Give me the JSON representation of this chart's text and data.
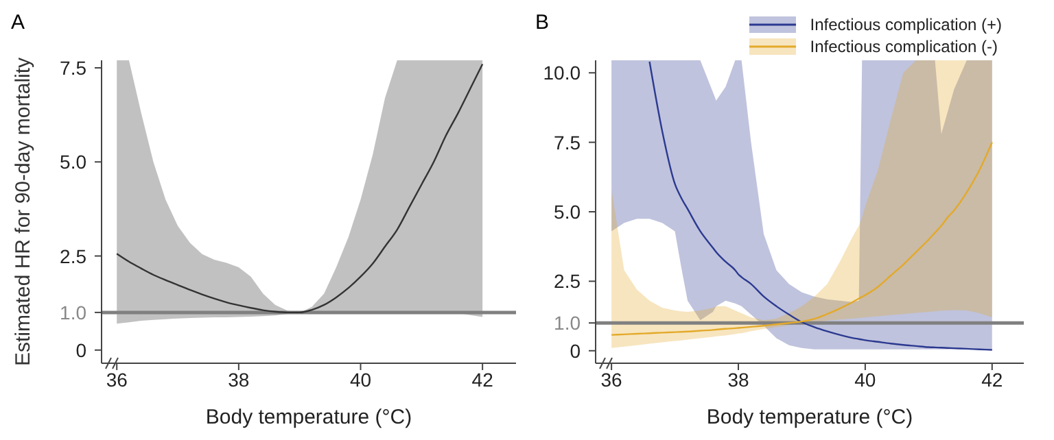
{
  "chart_data": [
    {
      "type": "line",
      "title": "A",
      "xlabel": "Body temperature (°C)",
      "ylabel": "Estimated HR for 90-day mortality",
      "xlim": [
        35.75,
        42.55
      ],
      "xticks": [
        36,
        38,
        40,
        42
      ],
      "ylim": [
        -0.35,
        7.7
      ],
      "yticks": [
        0,
        {
          "value": 1,
          "label": "1.0"
        },
        {
          "value": 2.5,
          "label": "2.5"
        },
        {
          "value": 5,
          "label": "5.0"
        },
        {
          "value": 7.5,
          "label": "7.5"
        }
      ],
      "ref_lines": [
        {
          "axis": "y",
          "value": 1,
          "color": "#808080"
        }
      ],
      "series": [
        {
          "color": "#333333",
          "x": [
            36,
            36.2,
            36.4,
            36.6,
            36.8,
            37,
            37.2,
            37.4,
            37.6,
            37.8,
            38,
            38.2,
            38.4,
            38.6,
            38.8,
            39,
            39.2,
            39.4,
            39.6,
            39.8,
            40,
            40.2,
            40.4,
            40.6,
            40.8,
            41,
            41.2,
            41.4,
            41.6,
            41.8,
            42
          ],
          "values": [
            2.56,
            2.35,
            2.17,
            2.0,
            1.86,
            1.73,
            1.6,
            1.48,
            1.37,
            1.27,
            1.19,
            1.12,
            1.06,
            1.02,
            1.0,
            1.0,
            1.07,
            1.2,
            1.4,
            1.65,
            1.95,
            2.3,
            2.75,
            3.2,
            3.8,
            4.4,
            5.0,
            5.7,
            6.3,
            6.95,
            7.6
          ],
          "upper": [
            7.7,
            7.7,
            6.3,
            5.0,
            4.0,
            3.3,
            2.85,
            2.55,
            2.4,
            2.32,
            2.2,
            1.95,
            1.5,
            1.2,
            1.05,
            1.0,
            1.15,
            1.5,
            2.2,
            3.0,
            4.0,
            5.2,
            6.7,
            7.7,
            7.7,
            7.7,
            7.7,
            7.7,
            7.7,
            7.7,
            7.7
          ],
          "lower": [
            0.7,
            0.74,
            0.78,
            0.8,
            0.82,
            0.84,
            0.85,
            0.86,
            0.87,
            0.87,
            0.88,
            0.89,
            0.9,
            0.92,
            0.96,
            1.0,
            1.0,
            1.0,
            1.0,
            1.0,
            1.0,
            1.0,
            1.0,
            1.0,
            1.0,
            1.0,
            1.0,
            1.0,
            0.98,
            0.93,
            0.88
          ]
        }
      ]
    },
    {
      "type": "line",
      "title": "B",
      "xlabel": "Body temperature (°C)",
      "xlim": [
        35.75,
        42.5
      ],
      "xticks": [
        36,
        38,
        40,
        42
      ],
      "ylim": [
        -0.45,
        10.45
      ],
      "yticks": [
        0,
        {
          "value": 1,
          "label": "1.0"
        },
        {
          "value": 2.5,
          "label": "2.5"
        },
        {
          "value": 5,
          "label": "5.0"
        },
        {
          "value": 7.5,
          "label": "7.5"
        },
        {
          "value": 10,
          "label": "10.0"
        }
      ],
      "legend": "top right",
      "ref_lines": [
        {
          "axis": "y",
          "value": 1,
          "color": "#808080"
        }
      ],
      "series": [
        {
          "name": "Infectious complication (+)",
          "color": "#2b3990",
          "x": [
            36,
            36.2,
            36.4,
            36.6,
            36.8,
            37,
            37.1,
            37.2,
            37.4,
            37.6,
            37.65,
            37.8,
            37.95,
            38,
            38.05,
            38.2,
            38.4,
            38.6,
            38.8,
            39,
            39.2,
            39.4,
            39.6,
            39.8,
            39.9,
            39.95,
            40,
            40.2,
            40.4,
            40.6,
            40.8,
            41,
            41.1,
            41.2,
            41.3,
            41.4,
            41.6,
            41.8,
            42
          ],
          "values": [
            null,
            null,
            null,
            10.4,
            7.9,
            6.0,
            5.5,
            5.1,
            4.3,
            3.7,
            3.55,
            3.2,
            2.9,
            2.75,
            2.65,
            2.4,
            1.95,
            1.6,
            1.3,
            1.03,
            0.85,
            0.7,
            0.57,
            0.46,
            0.42,
            0.4,
            0.38,
            0.32,
            0.26,
            0.21,
            0.17,
            0.13,
            0.12,
            0.11,
            0.1,
            0.09,
            0.07,
            0.05,
            0.03
          ],
          "upper": [
            10.45,
            10.45,
            10.45,
            10.45,
            10.45,
            10.45,
            10.45,
            10.45,
            10.45,
            9.3,
            9.0,
            9.5,
            10.45,
            10.45,
            10.45,
            7.5,
            4.2,
            2.9,
            2.4,
            2.1,
            1.95,
            1.85,
            1.8,
            1.75,
            1.8,
            10.45,
            10.45,
            10.45,
            10.45,
            10.45,
            10.45,
            10.45,
            10.45,
            7.8,
            8.6,
            9.4,
            10.45,
            10.45,
            10.45
          ],
          "lower": [
            4.3,
            4.6,
            4.75,
            4.75,
            4.6,
            4.3,
            3.0,
            1.8,
            1.1,
            1.4,
            1.6,
            1.8,
            1.7,
            1.65,
            1.6,
            1.3,
            0.9,
            0.45,
            0.2,
            0.1,
            0.05,
            0.05,
            0.05,
            0.05,
            0.05,
            0.05,
            0.05,
            0.05,
            0.05,
            0.05,
            0.05,
            0.05,
            0.05,
            0.05,
            0.05,
            0.05,
            0.05,
            0.05,
            0.05
          ]
        },
        {
          "name": "Infectious complication (-)",
          "color": "#e3a92a",
          "x": [
            36,
            36.2,
            36.4,
            36.6,
            36.8,
            37,
            37.1,
            37.2,
            37.4,
            37.6,
            37.65,
            37.8,
            37.95,
            38,
            38.05,
            38.2,
            38.4,
            38.6,
            38.8,
            39,
            39.2,
            39.4,
            39.6,
            39.8,
            39.9,
            39.95,
            40,
            40.2,
            40.4,
            40.6,
            40.8,
            41,
            41.1,
            41.2,
            41.3,
            41.4,
            41.6,
            41.8,
            42
          ],
          "values": [
            0.57,
            0.59,
            0.61,
            0.63,
            0.65,
            0.67,
            0.68,
            0.69,
            0.72,
            0.75,
            0.76,
            0.79,
            0.81,
            0.82,
            0.83,
            0.86,
            0.9,
            0.95,
            1.0,
            1.05,
            1.15,
            1.32,
            1.52,
            1.75,
            1.88,
            1.94,
            2.0,
            2.3,
            2.7,
            3.1,
            3.55,
            4.0,
            4.25,
            4.5,
            4.8,
            5.05,
            5.7,
            6.5,
            7.5
          ],
          "upper": [
            5.8,
            2.9,
            2.2,
            1.8,
            1.55,
            1.45,
            1.42,
            1.4,
            1.45,
            1.55,
            1.6,
            1.6,
            1.45,
            1.4,
            1.35,
            1.2,
            1.1,
            1.15,
            1.35,
            1.6,
            1.95,
            2.4,
            3.2,
            4.1,
            4.5,
            4.8,
            5.2,
            6.5,
            8.3,
            10.0,
            10.45,
            10.45,
            10.45,
            10.45,
            10.45,
            10.45,
            10.45,
            10.45,
            10.45
          ],
          "lower": [
            0.1,
            0.15,
            0.2,
            0.25,
            0.3,
            0.35,
            0.37,
            0.4,
            0.45,
            0.5,
            0.52,
            0.55,
            0.6,
            0.62,
            0.63,
            0.7,
            0.78,
            0.85,
            0.92,
            0.98,
            1.03,
            1.08,
            1.12,
            1.16,
            1.18,
            1.19,
            1.2,
            1.24,
            1.28,
            1.32,
            1.36,
            1.4,
            1.42,
            1.44,
            1.45,
            1.46,
            1.45,
            1.35,
            1.2
          ]
        }
      ]
    }
  ]
}
